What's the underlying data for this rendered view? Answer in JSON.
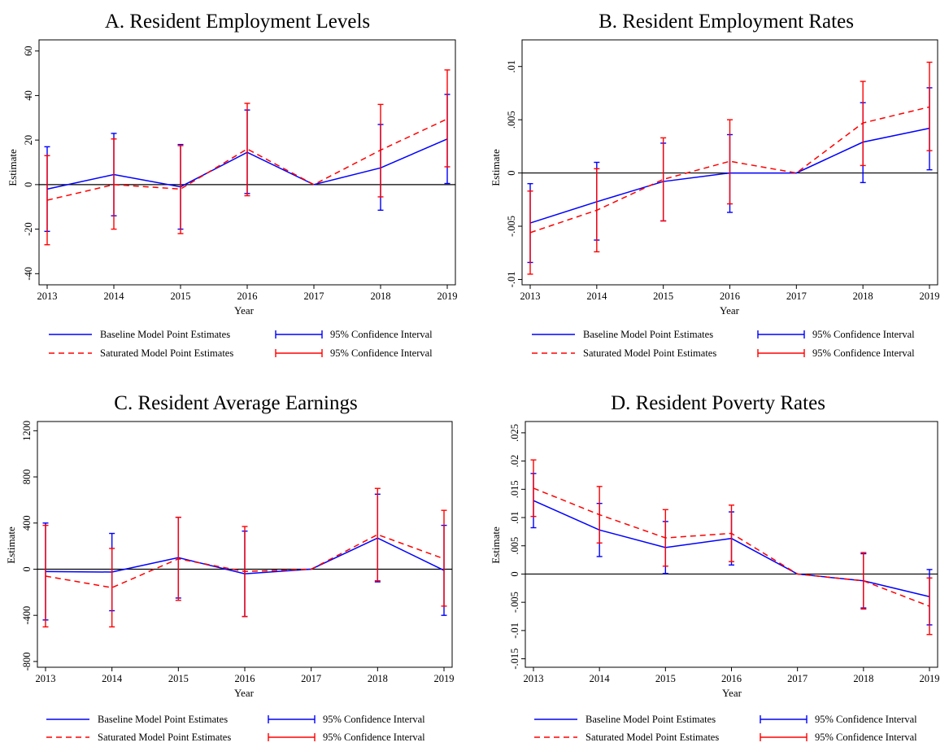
{
  "chart_data": [
    {
      "type": "line",
      "title": "A. Resident Employment Levels",
      "xlabel": "Year",
      "ylabel": "Estimate",
      "x": [
        2013,
        2014,
        2015,
        2016,
        2017,
        2018,
        2019
      ],
      "xlim": [
        2013,
        2019
      ],
      "ylim": [
        -45,
        65
      ],
      "yticks": [
        -40,
        -20,
        0,
        20,
        40,
        60
      ],
      "ytick_labels": [
        "-40",
        "-20",
        "0",
        "20",
        "40",
        "60"
      ],
      "grid": false,
      "legend_position": "bottom",
      "series": [
        {
          "name": "Baseline Model Point Estimates",
          "color": "#0000ff",
          "linestyle": "solid",
          "ci_label": "95% Confidence Interval",
          "values": [
            -2,
            4.5,
            -1,
            14.5,
            0,
            7.5,
            20.5
          ],
          "ci_low": [
            -21,
            -14,
            -20,
            -4,
            0,
            -11.5,
            0.5
          ],
          "ci_high": [
            17,
            23,
            18,
            33.5,
            0,
            27,
            40.5
          ]
        },
        {
          "name": "Saturated Model Point Estimates",
          "color": "#ff0000",
          "linestyle": "dashed",
          "ci_label": "95% Confidence Interval",
          "values": [
            -7,
            0,
            -2,
            16,
            0,
            15.5,
            29.5
          ],
          "ci_low": [
            -27,
            -20,
            -22,
            -5,
            0,
            -5.5,
            8
          ],
          "ci_high": [
            13,
            20.5,
            17.5,
            36.5,
            0,
            36,
            51.5
          ]
        }
      ]
    },
    {
      "type": "line",
      "title": "B. Resident Employment Rates",
      "xlabel": "Year",
      "ylabel": "Estimate",
      "x": [
        2013,
        2014,
        2015,
        2016,
        2017,
        2018,
        2019
      ],
      "xlim": [
        2013,
        2019
      ],
      "ylim": [
        -0.0105,
        0.0125
      ],
      "yticks": [
        -0.01,
        -0.005,
        0,
        0.005,
        0.01
      ],
      "ytick_labels": [
        "-.01",
        "-.005",
        "0",
        ".005",
        ".01"
      ],
      "grid": false,
      "legend_position": "bottom",
      "series": [
        {
          "name": "Baseline Model Point Estimates",
          "color": "#0000ff",
          "linestyle": "solid",
          "ci_label": "95% Confidence Interval",
          "values": [
            -0.0047,
            -0.0027,
            -0.0008,
            0,
            0,
            0.0029,
            0.0042
          ],
          "ci_low": [
            -0.0084,
            -0.0063,
            -0.0045,
            -0.0037,
            0,
            -0.0009,
            0.0003
          ],
          "ci_high": [
            -0.001,
            0.001,
            0.0028,
            0.0036,
            0,
            0.0066,
            0.008
          ]
        },
        {
          "name": "Saturated Model Point Estimates",
          "color": "#ff0000",
          "linestyle": "dashed",
          "ci_label": "95% Confidence Interval",
          "values": [
            -0.0056,
            -0.0035,
            -0.0006,
            0.0011,
            0,
            0.0047,
            0.0062
          ],
          "ci_low": [
            -0.0095,
            -0.0074,
            -0.0045,
            -0.0029,
            0,
            0.0007,
            0.0021
          ],
          "ci_high": [
            -0.0017,
            0.0004,
            0.0033,
            0.005,
            0,
            0.0086,
            0.0104
          ]
        }
      ]
    },
    {
      "type": "line",
      "title": "C. Resident Average Earnings",
      "xlabel": "Year",
      "ylabel": "Estimate",
      "x": [
        2013,
        2014,
        2015,
        2016,
        2017,
        2018,
        2019
      ],
      "xlim": [
        2013,
        2019
      ],
      "ylim": [
        -850,
        1280
      ],
      "yticks": [
        -800,
        -400,
        0,
        400,
        800,
        1200
      ],
      "ytick_labels": [
        "-800",
        "-400",
        "0",
        "400",
        "800",
        "1200"
      ],
      "grid": false,
      "legend_position": "bottom",
      "series": [
        {
          "name": "Baseline Model Point Estimates",
          "color": "#0000ff",
          "linestyle": "solid",
          "ci_label": "95% Confidence Interval",
          "values": [
            -20,
            -25,
            100,
            -40,
            0,
            270,
            -10
          ],
          "ci_low": [
            -440,
            -360,
            -250,
            -410,
            0,
            -110,
            -400
          ],
          "ci_high": [
            400,
            310,
            450,
            330,
            0,
            650,
            380
          ]
        },
        {
          "name": "Saturated Model Point Estimates",
          "color": "#ff0000",
          "linestyle": "dashed",
          "ci_label": "95% Confidence Interval",
          "values": [
            -60,
            -160,
            90,
            -20,
            0,
            300,
            90
          ],
          "ci_low": [
            -500,
            -500,
            -270,
            -410,
            0,
            -100,
            -320
          ],
          "ci_high": [
            380,
            180,
            450,
            370,
            0,
            700,
            510
          ]
        }
      ]
    },
    {
      "type": "line",
      "title": "D. Resident Poverty Rates",
      "xlabel": "Year",
      "ylabel": "Estimate",
      "x": [
        2013,
        2014,
        2015,
        2016,
        2017,
        2018,
        2019
      ],
      "xlim": [
        2013,
        2019
      ],
      "ylim": [
        -0.0165,
        0.027
      ],
      "yticks": [
        -0.015,
        -0.01,
        -0.005,
        0,
        0.005,
        0.01,
        0.015,
        0.02,
        0.025
      ],
      "ytick_labels": [
        "-.015",
        "-.01",
        "-.005",
        "0",
        ".005",
        ".01",
        ".015",
        ".02",
        ".025"
      ],
      "grid": false,
      "legend_position": "bottom",
      "series": [
        {
          "name": "Baseline Model Point Estimates",
          "color": "#0000ff",
          "linestyle": "solid",
          "ci_label": "95% Confidence Interval",
          "values": [
            0.013,
            0.0078,
            0.0047,
            0.0063,
            0,
            -0.0012,
            -0.004
          ],
          "ci_low": [
            0.0082,
            0.0031,
            0.0001,
            0.0016,
            0,
            -0.006,
            -0.009
          ],
          "ci_high": [
            0.0178,
            0.0125,
            0.0093,
            0.011,
            0,
            0.0036,
            0.0008
          ]
        },
        {
          "name": "Saturated Model Point Estimates",
          "color": "#ff0000",
          "linestyle": "dashed",
          "ci_label": "95% Confidence Interval",
          "values": [
            0.0152,
            0.0105,
            0.0064,
            0.0072,
            0,
            -0.0012,
            -0.0057
          ],
          "ci_low": [
            0.0102,
            0.0055,
            0.0014,
            0.0022,
            0,
            -0.0062,
            -0.0107
          ],
          "ci_high": [
            0.0202,
            0.0155,
            0.0114,
            0.0122,
            0,
            0.0038,
            -0.0007
          ]
        }
      ]
    }
  ]
}
